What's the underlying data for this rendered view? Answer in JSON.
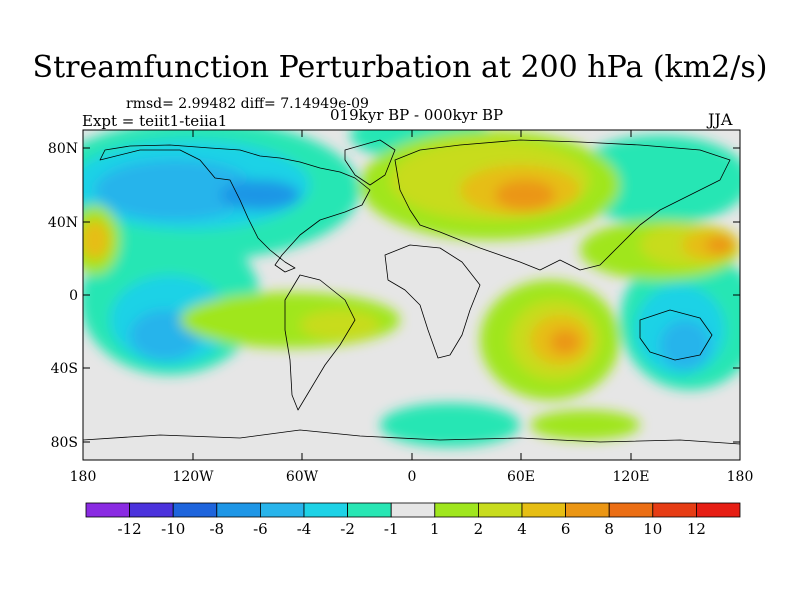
{
  "title": "Streamfunction Perturbation at 200 hPa (km2/s)",
  "stats": "rmsd= 2.99482 diff= 7.14949e-09",
  "experiment": "Expt = teiit1-teiia1",
  "period": "019kyr BP - 000kyr BP",
  "season": "JJA",
  "lat_labels": [
    "80N",
    "40N",
    "0",
    "40S",
    "80S"
  ],
  "lon_labels": [
    "180",
    "120W",
    "60W",
    "0",
    "60E",
    "120E",
    "180"
  ],
  "colorbar": {
    "labels": [
      "-12",
      "-10",
      "-8",
      "-6",
      "-4",
      "-2",
      "-1",
      "1",
      "2",
      "4",
      "6",
      "8",
      "10",
      "12"
    ],
    "colors": [
      "#8a2be2",
      "#4b32dc",
      "#1e64dc",
      "#1e96e6",
      "#28b4eb",
      "#1ed2e6",
      "#28e6b4",
      "#e6e6e6",
      "#a0e61e",
      "#c8dc1e",
      "#e6be14",
      "#eb9614",
      "#eb6e14",
      "#e63c14",
      "#e61e14"
    ]
  },
  "field_colors": {
    "neutral": "#e6e6e6",
    "neg1": "#28e6b4",
    "neg2": "#1ed2e6",
    "neg3": "#28b4eb",
    "neg4": "#1e96e6",
    "pos1": "#a0e61e",
    "pos2": "#c8dc1e",
    "pos3": "#e6be14",
    "pos4": "#eb9614",
    "pos5": "#eb6e14"
  }
}
